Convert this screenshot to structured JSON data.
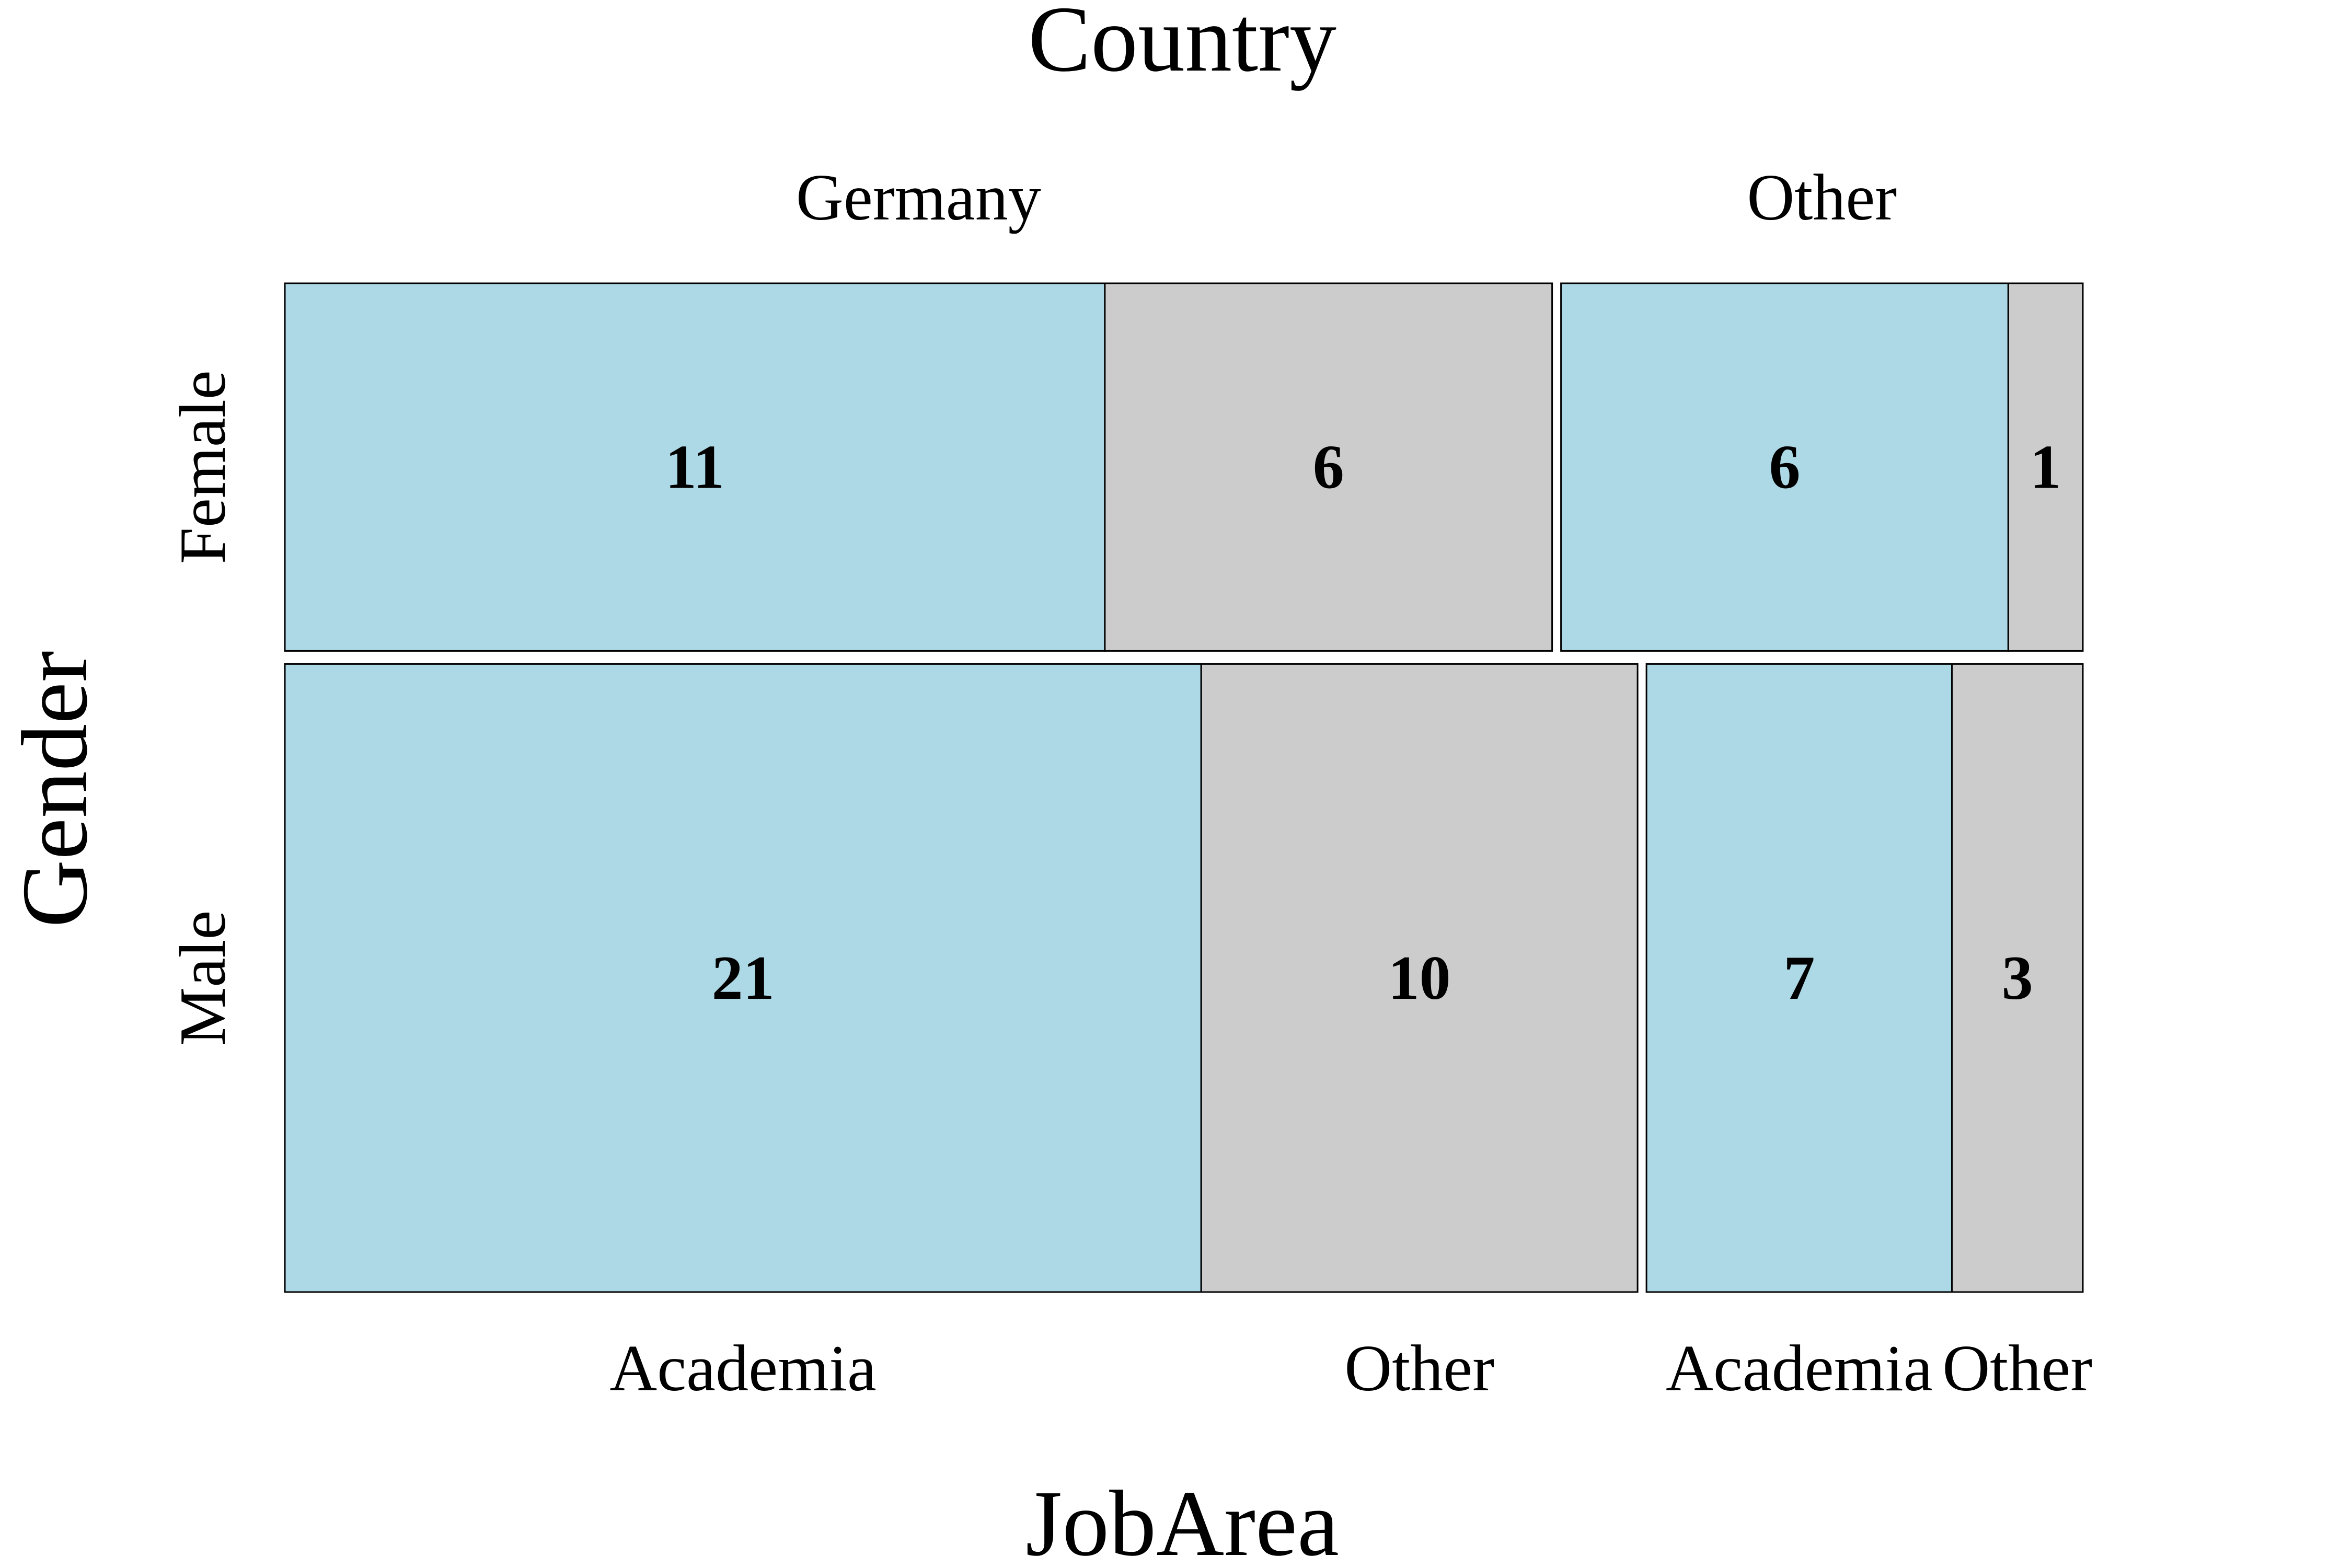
{
  "chart_data": {
    "type": "mosaic",
    "title": "Country",
    "xlabel": "JobArea",
    "ylabel": "Gender",
    "variables": {
      "column_outer": "Country",
      "row": "Gender",
      "column_inner": "JobArea"
    },
    "countries": [
      "Germany",
      "Other"
    ],
    "genders": [
      "Female",
      "Male"
    ],
    "job_areas": [
      "Academia",
      "Other"
    ],
    "counts": [
      {
        "gender": "Female",
        "country": "Germany",
        "job_area": "Academia",
        "value": 11
      },
      {
        "gender": "Female",
        "country": "Germany",
        "job_area": "Other",
        "value": 6
      },
      {
        "gender": "Female",
        "country": "Other",
        "job_area": "Academia",
        "value": 6
      },
      {
        "gender": "Female",
        "country": "Other",
        "job_area": "Other",
        "value": 1
      },
      {
        "gender": "Male",
        "country": "Germany",
        "job_area": "Academia",
        "value": 21
      },
      {
        "gender": "Male",
        "country": "Germany",
        "job_area": "Other",
        "value": 10
      },
      {
        "gender": "Male",
        "country": "Other",
        "job_area": "Academia",
        "value": 7
      },
      {
        "gender": "Male",
        "country": "Other",
        "job_area": "Other",
        "value": 3
      }
    ],
    "colors": {
      "Academia": "#add8e6",
      "Other": "#cccccc",
      "border": "#000000",
      "text": "#000000",
      "background": "#ffffff"
    },
    "bottom_labels": [
      "Academia",
      "Other",
      "Academia",
      "Other"
    ]
  }
}
